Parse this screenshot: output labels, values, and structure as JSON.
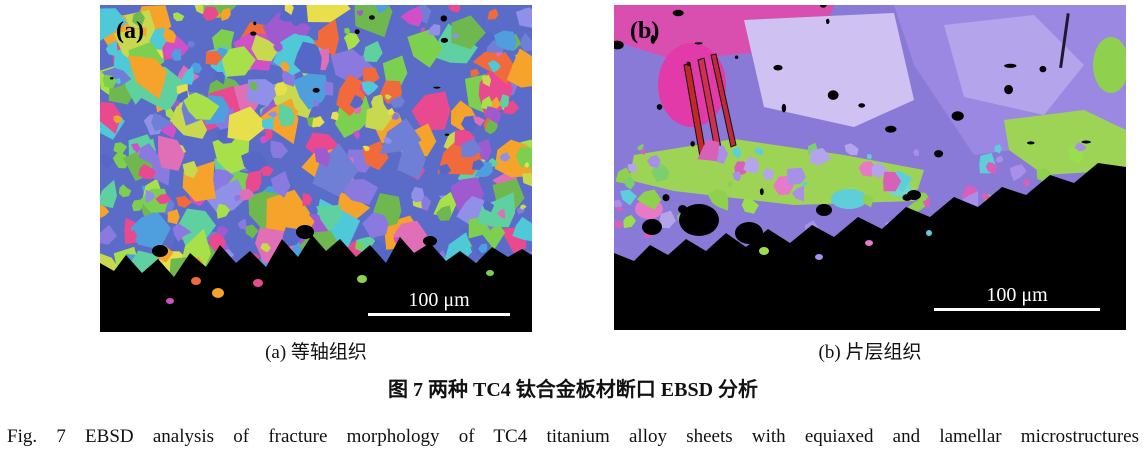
{
  "figure": {
    "title_zh": "图 7  两种 TC4 钛合金板材断口 EBSD 分析",
    "caption_en": "Fig. 7  EBSD analysis of fracture morphology of TC4 titanium alloy sheets with equiaxed and lamellar microstructures"
  },
  "panels": [
    {
      "label": "(a)",
      "caption": "(a) 等轴组织",
      "scale_label": "100 μm",
      "palette": [
        "#6f7fd6",
        "#5568c8",
        "#8a7ae0",
        "#a05ad0",
        "#4f9ede",
        "#7ccf4f",
        "#a8e04a",
        "#5fd0a0",
        "#e8498f",
        "#f06a3c",
        "#f5a32a",
        "#e8e04a",
        "#c8d84f",
        "#d050c8",
        "#4fc8d8",
        "#9090e8",
        "#6fb84f",
        "#e06fb8"
      ]
    },
    {
      "label": "(b)",
      "caption": "(b) 片层组织",
      "scale_label": "100 μm",
      "palette": [
        "#9ade4f",
        "#5ecfd8",
        "#e878c8",
        "#a890e8",
        "#7ccf6f",
        "#d860b8",
        "#b4a4ec",
        "#8fd14f"
      ]
    }
  ],
  "colors": {
    "fracture_black": "#000000",
    "scalebar_white": "#ffffff",
    "ebsd_purple": "#8a7ad8",
    "ebsd_green": "#9ed455",
    "ebsd_magenta": "#e23aa8"
  }
}
